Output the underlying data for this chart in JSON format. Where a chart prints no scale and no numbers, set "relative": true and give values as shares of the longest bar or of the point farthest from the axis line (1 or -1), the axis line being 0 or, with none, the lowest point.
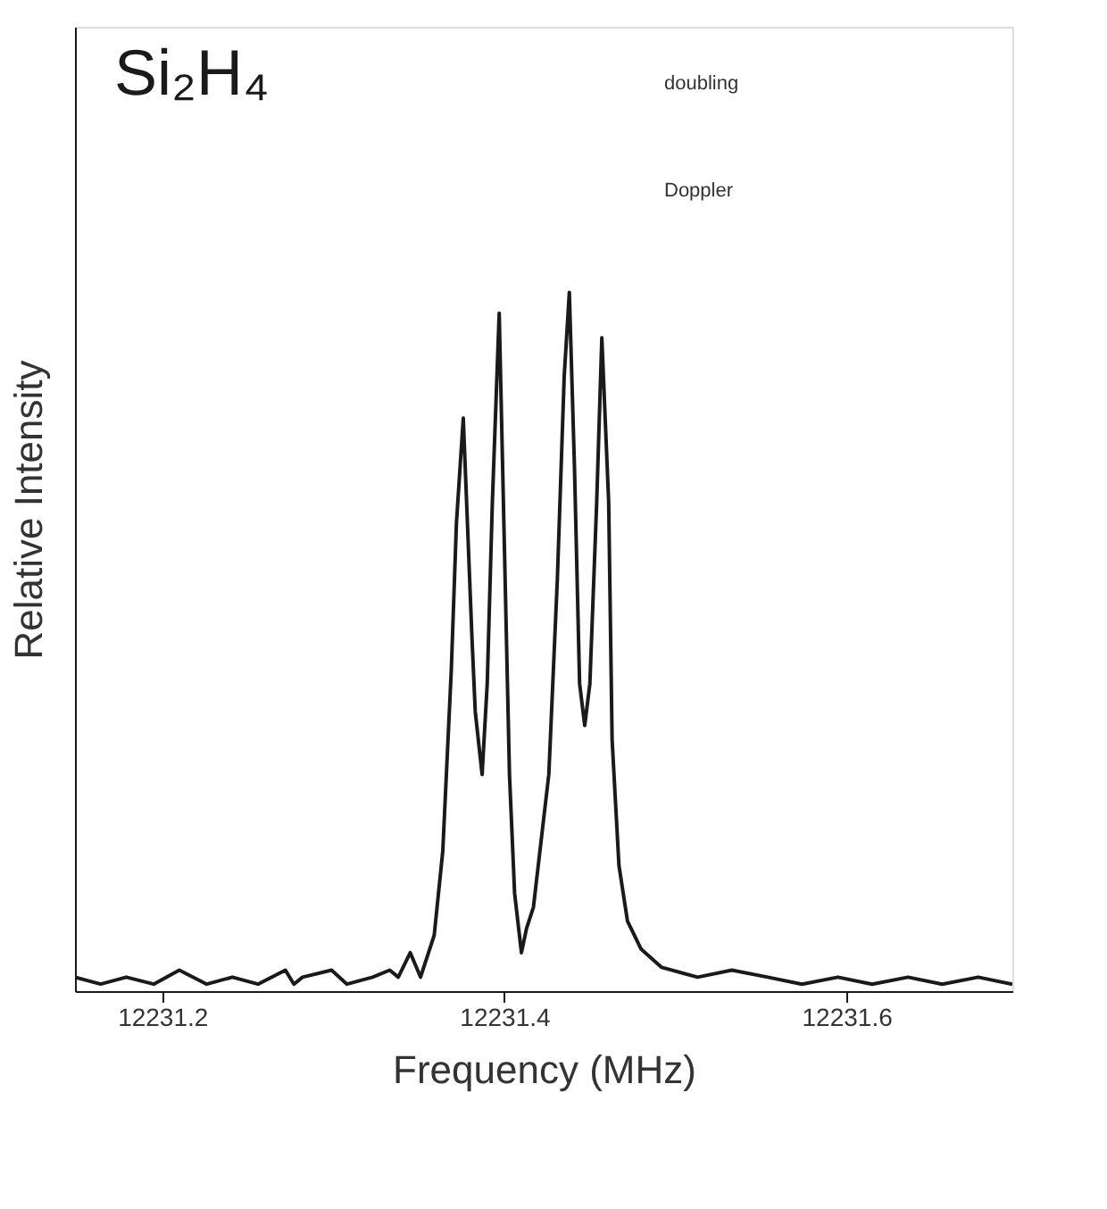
{
  "chart_data": {
    "type": "line",
    "title": "Si₂H₄",
    "xlabel": "Frequency (MHz)",
    "ylabel": "Relative Intensity",
    "relative": true,
    "grid": false,
    "marker": "none",
    "line_style": "solid",
    "xlim": [
      12231.149,
      12231.697
    ],
    "xticks": [
      12231.2,
      12231.4,
      12231.6
    ],
    "annotations": [
      "doubling",
      "Doppler"
    ],
    "x": [
      12231.149,
      12231.164,
      12231.179,
      12231.195,
      12231.21,
      12231.226,
      12231.241,
      12231.256,
      12231.272,
      12231.277,
      12231.282,
      12231.299,
      12231.308,
      12231.323,
      12231.333,
      12231.338,
      12231.345,
      12231.351,
      12231.359,
      12231.364,
      12231.369,
      12231.372,
      12231.376,
      12231.381,
      12231.383,
      12231.387,
      12231.39,
      12231.393,
      12231.397,
      12231.4,
      12231.403,
      12231.406,
      12231.41,
      12231.413,
      12231.417,
      12231.426,
      12231.431,
      12231.435,
      12231.438,
      12231.441,
      12231.444,
      12231.447,
      12231.45,
      12231.454,
      12231.457,
      12231.461,
      12231.463,
      12231.467,
      12231.472,
      12231.48,
      12231.492,
      12231.513,
      12231.533,
      12231.554,
      12231.574,
      12231.595,
      12231.615,
      12231.636,
      12231.656,
      12231.677,
      12231.697
    ],
    "series": [
      {
        "color": "#1a1a1a",
        "values": [
          0.02,
          0.01,
          0.02,
          0.01,
          0.03,
          0.01,
          0.02,
          0.01,
          0.03,
          0.01,
          0.02,
          0.03,
          0.01,
          0.02,
          0.03,
          0.02,
          0.055,
          0.02,
          0.08,
          0.2,
          0.46,
          0.67,
          0.82,
          0.51,
          0.4,
          0.31,
          0.44,
          0.7,
          0.97,
          0.64,
          0.31,
          0.14,
          0.055,
          0.09,
          0.12,
          0.31,
          0.59,
          0.88,
          1.0,
          0.75,
          0.44,
          0.38,
          0.44,
          0.7,
          0.935,
          0.7,
          0.36,
          0.18,
          0.1,
          0.06,
          0.034,
          0.02,
          0.03,
          0.02,
          0.01,
          0.02,
          0.01,
          0.02,
          0.01,
          0.02,
          0.01
        ]
      }
    ]
  }
}
